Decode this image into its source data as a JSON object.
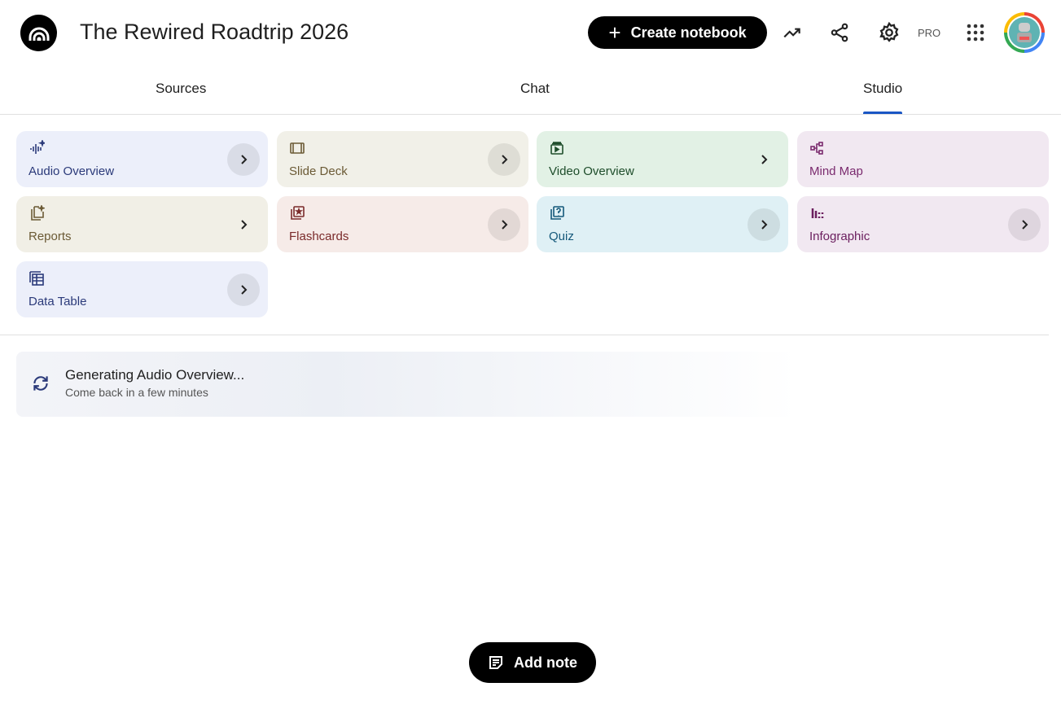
{
  "header": {
    "title": "The Rewired Roadtrip 2026",
    "create_label": "Create notebook",
    "pro_label": "PRO"
  },
  "tabs": [
    {
      "label": "Sources"
    },
    {
      "label": "Chat"
    },
    {
      "label": "Studio",
      "active": true
    }
  ],
  "studio": {
    "cards": [
      {
        "label": "Audio Overview",
        "icon": "audio-sparkle-icon",
        "bg": "#eceffa",
        "color": "#2b3a7a"
      },
      {
        "label": "Slide Deck",
        "icon": "slides-icon",
        "bg": "#f1f0e8",
        "color": "#6b5a35"
      },
      {
        "label": "Video Overview",
        "icon": "video-icon",
        "bg": "#e2f1e5",
        "color": "#1e4d2b"
      },
      {
        "label": "Mind Map",
        "icon": "mind-map-icon",
        "bg": "#f1e8f1",
        "color": "#7a2a6e"
      },
      {
        "label": "Reports",
        "icon": "reports-icon",
        "bg": "#f1efe6",
        "color": "#6b5a35"
      },
      {
        "label": "Flashcards",
        "icon": "flashcards-icon",
        "bg": "#f6ebe8",
        "color": "#7a2a2a"
      },
      {
        "label": "Quiz",
        "icon": "quiz-icon",
        "bg": "#dff0f5",
        "color": "#14587a"
      },
      {
        "label": "Infographic",
        "icon": "infographic-icon",
        "bg": "#f1e8f1",
        "color": "#6b1e5e"
      },
      {
        "label": "Data Table",
        "icon": "table-icon",
        "bg": "#eceffa",
        "color": "#2b3a7a"
      }
    ],
    "generating": {
      "title": "Generating Audio Overview...",
      "subtitle": "Come back in a few minutes"
    }
  },
  "add_note_label": "Add note",
  "colors": {
    "accent": "#1a56c4"
  }
}
